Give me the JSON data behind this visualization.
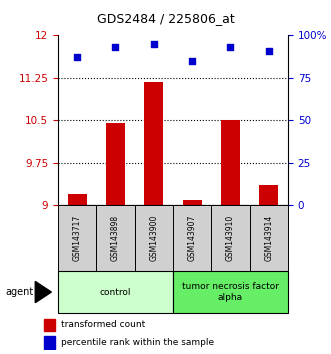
{
  "title": "GDS2484 / 225806_at",
  "samples": [
    "GSM143717",
    "GSM143898",
    "GSM143900",
    "GSM143907",
    "GSM143910",
    "GSM143914"
  ],
  "bar_values": [
    9.2,
    10.45,
    11.18,
    9.1,
    10.5,
    9.35
  ],
  "scatter_values": [
    87,
    93,
    95,
    85,
    93,
    91
  ],
  "ylim_left": [
    9,
    12
  ],
  "ylim_right": [
    0,
    100
  ],
  "yticks_left": [
    9,
    9.75,
    10.5,
    11.25,
    12
  ],
  "ytick_labels_left": [
    "9",
    "9.75",
    "10.5",
    "11.25",
    "12"
  ],
  "yticks_right": [
    0,
    25,
    50,
    75,
    100
  ],
  "ytick_labels_right": [
    "0",
    "25",
    "50",
    "75",
    "100%"
  ],
  "hlines": [
    9.75,
    10.5,
    11.25
  ],
  "bar_color": "#cc0000",
  "scatter_color": "#0000cc",
  "group_labels": [
    "control",
    "tumor necrosis factor\nalpha"
  ],
  "group_ranges": [
    [
      0,
      3
    ],
    [
      3,
      6
    ]
  ],
  "group_colors_fill": [
    "#ccffcc",
    "#66ee66"
  ],
  "agent_label": "agent",
  "legend_bar_label": "transformed count",
  "legend_scatter_label": "percentile rank within the sample",
  "label_color_left": "#cc0000",
  "label_color_right": "#0000cc",
  "bar_width": 0.5,
  "sample_box_color": "#d0d0d0"
}
